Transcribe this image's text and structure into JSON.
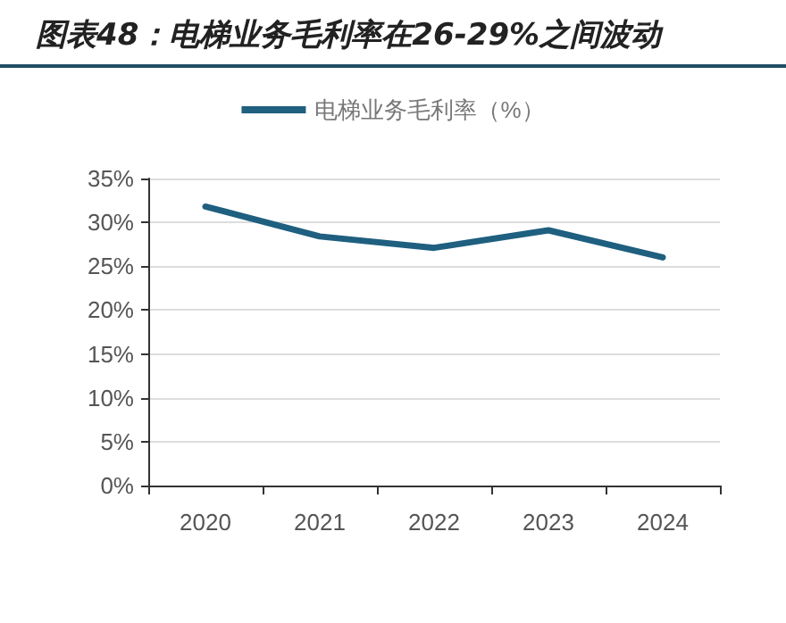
{
  "chart_data": {
    "type": "line",
    "title": "图表48：电梯业务毛利率在26-29%之间波动",
    "categories": [
      "2020",
      "2021",
      "2022",
      "2023",
      "2024"
    ],
    "series": [
      {
        "name": "电梯业务毛利率（%）",
        "color": "#1f5f7f",
        "values": [
          31.8,
          28.4,
          27.1,
          29.1,
          26.0
        ]
      }
    ],
    "ylim": [
      0,
      35
    ],
    "yticks": [
      {
        "value": 0,
        "label": "0%"
      },
      {
        "value": 5,
        "label": "5%"
      },
      {
        "value": 10,
        "label": "10%"
      },
      {
        "value": 15,
        "label": "15%"
      },
      {
        "value": 20,
        "label": "20%"
      },
      {
        "value": 25,
        "label": "25%"
      },
      {
        "value": 30,
        "label": "30%"
      },
      {
        "value": 35,
        "label": "35%"
      }
    ],
    "grid": "y",
    "legend": "top",
    "marker": "none",
    "line_style": "solid"
  }
}
